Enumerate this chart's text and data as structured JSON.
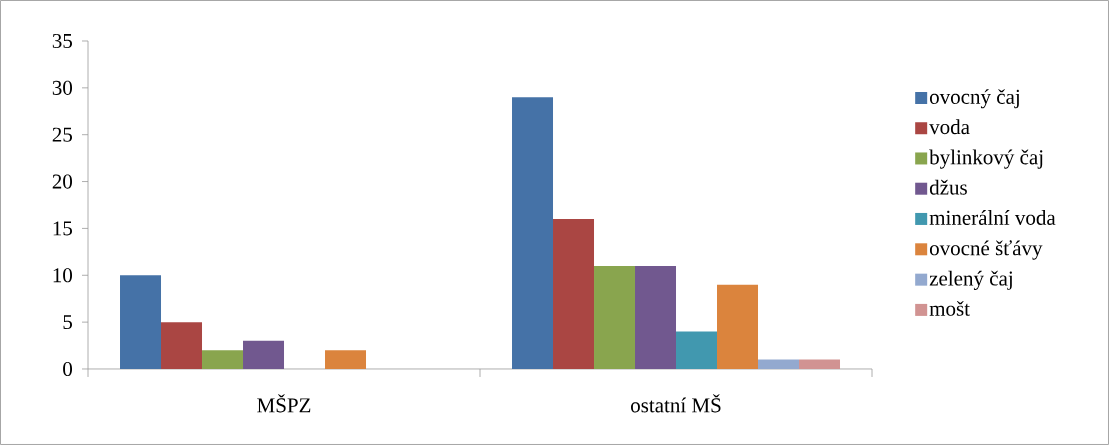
{
  "chart_data": {
    "type": "bar",
    "categories": [
      "MŠPZ",
      "ostatní MŠ"
    ],
    "series": [
      {
        "name": "ovocný čaj",
        "color": "#4572a7",
        "values": [
          10,
          29
        ]
      },
      {
        "name": "voda",
        "color": "#aa4643",
        "values": [
          5,
          16
        ]
      },
      {
        "name": "bylinkový čaj",
        "color": "#89a54e",
        "values": [
          2,
          11
        ]
      },
      {
        "name": "džus",
        "color": "#71588f",
        "values": [
          3,
          11
        ]
      },
      {
        "name": "minerální voda",
        "color": "#4198af",
        "values": [
          0,
          4
        ]
      },
      {
        "name": "ovocné šťávy",
        "color": "#db843d",
        "values": [
          2,
          9
        ]
      },
      {
        "name": "zelený čaj",
        "color": "#93a9cf",
        "values": [
          0,
          1
        ]
      },
      {
        "name": "mošt",
        "color": "#d19392",
        "values": [
          0,
          1
        ]
      }
    ],
    "ylim": [
      0,
      35
    ],
    "yticks": [
      0,
      5,
      10,
      15,
      20,
      25,
      30,
      35
    ],
    "legend": "right"
  }
}
